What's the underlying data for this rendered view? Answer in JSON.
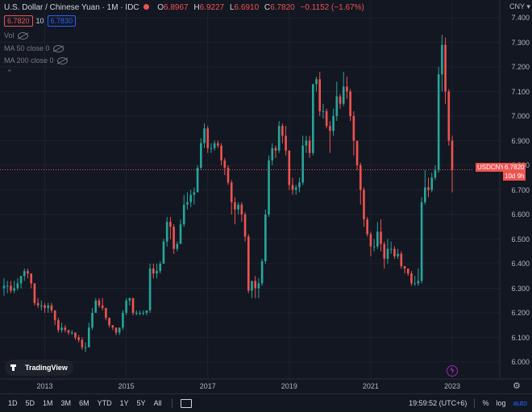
{
  "header": {
    "title": "U.S. Dollar / Chinese Yuan · 1M · IDC",
    "open_label": "O",
    "open": "6.8967",
    "high_label": "H",
    "high": "6.9227",
    "low_label": "L",
    "low": "6.6910",
    "close_label": "C",
    "close": "6.7820",
    "change": "−0.1152 (−1.67%)",
    "sell_price": "6.7820",
    "spread": "10",
    "buy_price": "6.7830"
  },
  "indicators": [
    {
      "label": "Vol"
    },
    {
      "label": "MA 50 close 0"
    },
    {
      "label": "MA 200 close 0"
    }
  ],
  "collapse_icon": "chevron-up-icon",
  "axis": {
    "currency": "CNY",
    "y_ticks": [
      "7.400",
      "7.300",
      "7.200",
      "7.100",
      "7.000",
      "6.900",
      "6.800",
      "6.700",
      "6.600",
      "6.500",
      "6.400",
      "6.300",
      "6.200",
      "6.100",
      "6.000"
    ],
    "x_ticks": [
      "2013",
      "2015",
      "2017",
      "2019",
      "2021",
      "2023"
    ]
  },
  "last_price": {
    "symbol": "USDCNY",
    "value": "6.7820",
    "countdown": "10d 9h"
  },
  "branding": {
    "logo_text": "TradingView"
  },
  "bottom_bar": {
    "timeframes": [
      "1D",
      "5D",
      "1M",
      "3M",
      "6M",
      "YTD",
      "1Y",
      "5Y",
      "All"
    ],
    "clock": "19:59:52 (UTC+6)",
    "percent": "%",
    "log": "log",
    "auto": "auto"
  },
  "colors": {
    "up": "#26a69a",
    "down": "#ef5350",
    "background": "#131722",
    "grid": "#1e222d"
  },
  "chart_data": {
    "type": "candlestick",
    "x_unit": "month",
    "start": "2012-01",
    "ylim": [
      5.97,
      7.43
    ],
    "candles": [
      [
        6.3,
        6.34,
        6.27,
        6.31
      ],
      [
        6.31,
        6.33,
        6.28,
        6.31
      ],
      [
        6.31,
        6.33,
        6.28,
        6.29
      ],
      [
        6.29,
        6.33,
        6.28,
        6.3
      ],
      [
        6.3,
        6.34,
        6.29,
        6.32
      ],
      [
        6.32,
        6.35,
        6.3,
        6.35
      ],
      [
        6.35,
        6.38,
        6.33,
        6.37
      ],
      [
        6.37,
        6.38,
        6.34,
        6.36
      ],
      [
        6.36,
        6.36,
        6.3,
        6.32
      ],
      [
        6.32,
        6.32,
        6.23,
        6.24
      ],
      [
        6.24,
        6.26,
        6.22,
        6.23
      ],
      [
        6.23,
        6.25,
        6.21,
        6.23
      ],
      [
        6.23,
        6.24,
        6.2,
        6.22
      ],
      [
        6.22,
        6.24,
        6.2,
        6.23
      ],
      [
        6.23,
        6.24,
        6.2,
        6.21
      ],
      [
        6.21,
        6.21,
        6.15,
        6.17
      ],
      [
        6.17,
        6.18,
        6.12,
        6.13
      ],
      [
        6.13,
        6.16,
        6.12,
        6.14
      ],
      [
        6.14,
        6.15,
        6.12,
        6.13
      ],
      [
        6.13,
        6.13,
        6.11,
        6.12
      ],
      [
        6.12,
        6.13,
        6.11,
        6.12
      ],
      [
        6.12,
        6.12,
        6.09,
        6.1
      ],
      [
        6.1,
        6.11,
        6.08,
        6.09
      ],
      [
        6.09,
        6.1,
        6.05,
        6.06
      ],
      [
        6.06,
        6.08,
        6.04,
        6.06
      ],
      [
        6.06,
        6.16,
        6.06,
        6.14
      ],
      [
        6.14,
        6.22,
        6.13,
        6.2
      ],
      [
        6.2,
        6.26,
        6.2,
        6.25
      ],
      [
        6.25,
        6.26,
        6.22,
        6.23
      ],
      [
        6.23,
        6.26,
        6.21,
        6.22
      ],
      [
        6.22,
        6.22,
        6.17,
        6.18
      ],
      [
        6.18,
        6.18,
        6.14,
        6.15
      ],
      [
        6.15,
        6.15,
        6.13,
        6.14
      ],
      [
        6.14,
        6.14,
        6.11,
        6.12
      ],
      [
        6.12,
        6.14,
        6.11,
        6.14
      ],
      [
        6.14,
        6.21,
        6.13,
        6.2
      ],
      [
        6.2,
        6.26,
        6.19,
        6.25
      ],
      [
        6.25,
        6.26,
        6.23,
        6.26
      ],
      [
        6.26,
        6.26,
        6.19,
        6.2
      ],
      [
        6.2,
        6.21,
        6.19,
        6.2
      ],
      [
        6.2,
        6.21,
        6.19,
        6.2
      ],
      [
        6.2,
        6.21,
        6.19,
        6.2
      ],
      [
        6.2,
        6.21,
        6.19,
        6.21
      ],
      [
        6.21,
        6.4,
        6.2,
        6.38
      ],
      [
        6.38,
        6.4,
        6.34,
        6.36
      ],
      [
        6.36,
        6.4,
        6.34,
        6.37
      ],
      [
        6.37,
        6.41,
        6.36,
        6.4
      ],
      [
        6.4,
        6.5,
        6.4,
        6.49
      ],
      [
        6.49,
        6.59,
        6.47,
        6.57
      ],
      [
        6.57,
        6.59,
        6.5,
        6.55
      ],
      [
        6.55,
        6.56,
        6.44,
        6.46
      ],
      [
        6.46,
        6.49,
        6.45,
        6.48
      ],
      [
        6.48,
        6.58,
        6.48,
        6.56
      ],
      [
        6.56,
        6.68,
        6.55,
        6.64
      ],
      [
        6.64,
        6.69,
        6.62,
        6.65
      ],
      [
        6.65,
        6.7,
        6.63,
        6.68
      ],
      [
        6.68,
        6.71,
        6.64,
        6.69
      ],
      [
        6.69,
        6.8,
        6.69,
        6.79
      ],
      [
        6.79,
        6.91,
        6.78,
        6.89
      ],
      [
        6.89,
        6.97,
        6.87,
        6.95
      ],
      [
        6.95,
        6.96,
        6.85,
        6.87
      ],
      [
        6.87,
        6.89,
        6.85,
        6.87
      ],
      [
        6.87,
        6.9,
        6.86,
        6.89
      ],
      [
        6.89,
        6.9,
        6.87,
        6.88
      ],
      [
        6.88,
        6.89,
        6.8,
        6.82
      ],
      [
        6.82,
        6.83,
        6.76,
        6.79
      ],
      [
        6.79,
        6.8,
        6.72,
        6.73
      ],
      [
        6.73,
        6.74,
        6.6,
        6.65
      ],
      [
        6.65,
        6.67,
        6.56,
        6.62
      ],
      [
        6.62,
        6.65,
        6.6,
        6.64
      ],
      [
        6.64,
        6.65,
        6.57,
        6.6
      ],
      [
        6.6,
        6.61,
        6.49,
        6.51
      ],
      [
        6.51,
        6.52,
        6.28,
        6.29
      ],
      [
        6.29,
        6.33,
        6.26,
        6.33
      ],
      [
        6.33,
        6.35,
        6.26,
        6.3
      ],
      [
        6.3,
        6.34,
        6.26,
        6.32
      ],
      [
        6.32,
        6.42,
        6.31,
        6.41
      ],
      [
        6.41,
        6.62,
        6.4,
        6.6
      ],
      [
        6.6,
        6.84,
        6.59,
        6.82
      ],
      [
        6.82,
        6.89,
        6.8,
        6.87
      ],
      [
        6.87,
        6.88,
        6.83,
        6.86
      ],
      [
        6.86,
        6.98,
        6.85,
        6.96
      ],
      [
        6.96,
        6.97,
        6.89,
        6.92
      ],
      [
        6.92,
        6.96,
        6.84,
        6.86
      ],
      [
        6.86,
        6.86,
        6.7,
        6.72
      ],
      [
        6.72,
        6.75,
        6.68,
        6.7
      ],
      [
        6.7,
        6.72,
        6.68,
        6.71
      ],
      [
        6.71,
        6.75,
        6.69,
        6.73
      ],
      [
        6.73,
        6.92,
        6.72,
        6.88
      ],
      [
        6.88,
        6.92,
        6.85,
        6.9
      ],
      [
        6.9,
        6.92,
        6.83,
        6.85
      ],
      [
        6.85,
        7.13,
        6.84,
        7.13
      ],
      [
        7.13,
        7.16,
        7.1,
        7.15
      ],
      [
        7.15,
        7.18,
        7.0,
        7.02
      ],
      [
        7.02,
        7.05,
        6.99,
        7.02
      ],
      [
        7.02,
        7.03,
        6.95,
        6.96
      ],
      [
        6.96,
        6.98,
        6.85,
        6.94
      ],
      [
        6.94,
        7.03,
        6.92,
        7.0
      ],
      [
        7.0,
        7.14,
        6.98,
        7.08
      ],
      [
        7.08,
        7.09,
        7.03,
        7.05
      ],
      [
        7.05,
        7.18,
        7.04,
        7.12
      ],
      [
        7.12,
        7.16,
        7.07,
        7.1
      ],
      [
        7.1,
        7.11,
        6.98,
        7.0
      ],
      [
        7.0,
        7.02,
        6.84,
        6.9
      ],
      [
        6.9,
        6.9,
        6.78,
        6.8
      ],
      [
        6.8,
        6.81,
        6.64,
        6.7
      ],
      [
        6.7,
        6.71,
        6.55,
        6.58
      ],
      [
        6.58,
        6.59,
        6.51,
        6.52
      ],
      [
        6.52,
        6.53,
        6.43,
        6.47
      ],
      [
        6.47,
        6.5,
        6.45,
        6.47
      ],
      [
        6.47,
        6.57,
        6.46,
        6.53
      ],
      [
        6.53,
        6.58,
        6.45,
        6.48
      ],
      [
        6.48,
        6.49,
        6.38,
        6.42
      ],
      [
        6.42,
        6.5,
        6.4,
        6.46
      ],
      [
        6.46,
        6.49,
        6.44,
        6.46
      ],
      [
        6.46,
        6.47,
        6.42,
        6.43
      ],
      [
        6.43,
        6.46,
        6.42,
        6.44
      ],
      [
        6.44,
        6.45,
        6.38,
        6.39
      ],
      [
        6.39,
        6.39,
        6.36,
        6.38
      ],
      [
        6.38,
        6.38,
        6.35,
        6.36
      ],
      [
        6.36,
        6.37,
        6.31,
        6.32
      ],
      [
        6.32,
        6.35,
        6.31,
        6.32
      ],
      [
        6.32,
        6.38,
        6.31,
        6.33
      ],
      [
        6.33,
        6.67,
        6.32,
        6.65
      ],
      [
        6.65,
        6.78,
        6.64,
        6.71
      ],
      [
        6.71,
        6.75,
        6.67,
        6.7
      ],
      [
        6.7,
        6.77,
        6.69,
        6.75
      ],
      [
        6.75,
        6.8,
        6.74,
        6.78
      ],
      [
        6.78,
        7.2,
        6.77,
        7.17
      ],
      [
        7.17,
        7.33,
        7.1,
        7.29
      ],
      [
        7.29,
        7.32,
        7.05,
        7.1
      ],
      [
        7.1,
        7.11,
        6.88,
        6.9
      ],
      [
        6.9,
        6.92,
        6.69,
        6.78
      ]
    ]
  }
}
